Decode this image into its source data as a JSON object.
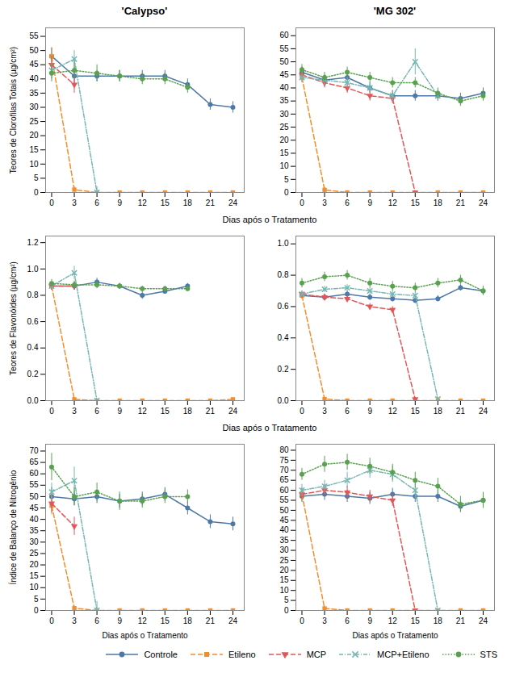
{
  "chart_data": [
    {
      "type": "line",
      "title": "'Calypso'",
      "ylabel": "Teores de Clorofilas Totais (µg/cm²)",
      "xlabel": "Dias após o Tratamento",
      "x": [
        0,
        3,
        6,
        9,
        12,
        15,
        18,
        21,
        24
      ],
      "xlim": [
        -0.8,
        25.5
      ],
      "xticks": [
        0,
        3,
        6,
        9,
        12,
        15,
        18,
        21,
        24
      ],
      "ylim": [
        0,
        58
      ],
      "yticks": [
        0,
        5,
        10,
        15,
        20,
        25,
        30,
        35,
        40,
        45,
        50,
        55
      ],
      "series": [
        {
          "name": "Controle",
          "marker": "circle",
          "line_style": "solid",
          "values": [
            48,
            41,
            41,
            41,
            41,
            41,
            38,
            31,
            30
          ],
          "errors": [
            3,
            3,
            2,
            2,
            2,
            2,
            2,
            2,
            2
          ]
        },
        {
          "name": "Etileno",
          "marker": "square",
          "line_style": "dashed",
          "values": [
            48,
            1,
            0,
            0,
            0,
            0,
            0,
            0,
            0
          ],
          "errors": [
            3,
            1,
            0,
            0,
            0,
            0,
            0,
            0,
            0
          ]
        },
        {
          "name": "MCP",
          "marker": "triangle_down",
          "line_style": "dashed",
          "values": [
            45,
            38,
            null,
            null,
            null,
            null,
            null,
            null,
            null
          ],
          "errors": [
            3,
            3,
            null,
            null,
            null,
            null,
            null,
            null,
            null
          ]
        },
        {
          "name": "MCP+Etileno",
          "marker": "x",
          "line_style": "dashdot",
          "values": [
            43,
            47,
            0,
            null,
            null,
            null,
            null,
            null,
            null
          ],
          "errors": [
            3,
            3,
            2,
            null,
            null,
            null,
            null,
            null,
            null
          ]
        },
        {
          "name": "STS",
          "marker": "circle",
          "line_style": "dotted",
          "values": [
            42,
            43,
            42,
            41,
            40,
            40,
            37,
            null,
            null
          ],
          "errors": [
            3,
            3,
            3,
            2,
            2,
            2,
            2,
            null,
            null
          ]
        }
      ]
    },
    {
      "type": "line",
      "title": "'MG 302'",
      "x": [
        0,
        3,
        6,
        9,
        12,
        15,
        18,
        21,
        24
      ],
      "xlim": [
        -0.8,
        25.5
      ],
      "xticks": [
        0,
        3,
        6,
        9,
        12,
        15,
        18,
        21,
        24
      ],
      "ylim": [
        0,
        63
      ],
      "yticks": [
        0,
        5,
        10,
        15,
        20,
        25,
        30,
        35,
        40,
        45,
        50,
        55,
        60
      ],
      "series": [
        {
          "name": "Controle",
          "marker": "circle",
          "line_style": "solid",
          "values": [
            46,
            43,
            44,
            40,
            37,
            37,
            37,
            36,
            38
          ],
          "errors": [
            2,
            2,
            2,
            2,
            2,
            2,
            2,
            2,
            2
          ]
        },
        {
          "name": "Etileno",
          "marker": "square",
          "line_style": "dashed",
          "values": [
            44,
            1,
            0,
            0,
            0,
            0,
            0,
            0,
            0
          ],
          "errors": [
            2,
            1,
            0,
            0,
            0,
            0,
            0,
            0,
            0
          ]
        },
        {
          "name": "MCP",
          "marker": "triangle_down",
          "line_style": "dashed",
          "values": [
            45,
            42,
            40,
            37,
            36,
            0,
            null,
            null,
            null
          ],
          "errors": [
            2,
            2,
            2,
            2,
            2,
            0,
            null,
            null,
            null
          ]
        },
        {
          "name": "MCP+Etileno",
          "marker": "x",
          "line_style": "dashdot",
          "values": [
            44,
            43,
            42,
            40,
            37,
            50,
            37,
            null,
            null
          ],
          "errors": [
            2,
            2,
            2,
            2,
            2,
            5,
            2,
            null,
            null
          ]
        },
        {
          "name": "STS",
          "marker": "circle",
          "line_style": "dotted",
          "values": [
            47,
            44,
            46,
            44,
            42,
            42,
            38,
            35,
            37
          ],
          "errors": [
            2,
            2,
            2,
            2,
            2,
            2,
            2,
            2,
            2
          ]
        }
      ]
    },
    {
      "type": "line",
      "ylabel": "Teores de Flavonóides (µg/cm²)",
      "xlabel": "Dias após o Tratamento",
      "x": [
        0,
        3,
        6,
        9,
        12,
        15,
        18,
        21,
        24
      ],
      "xlim": [
        -0.8,
        25.5
      ],
      "xticks": [
        0,
        3,
        6,
        9,
        12,
        15,
        18,
        21,
        24
      ],
      "ylim": [
        0.0,
        1.25
      ],
      "yticks": [
        {
          "value": 0,
          "label": "0.0"
        },
        0.2,
        0.4,
        0.6,
        0.8,
        {
          "value": 1,
          "label": "1.0"
        },
        1.2
      ],
      "series": [
        {
          "name": "Controle",
          "marker": "circle",
          "line_style": "solid",
          "values": [
            0.87,
            0.87,
            0.9,
            0.87,
            0.8,
            0.83,
            0.87,
            null,
            null
          ],
          "errors": [
            0.03,
            0.03,
            0.03,
            0.02,
            0.03,
            0.02,
            0.02,
            null,
            null
          ]
        },
        {
          "name": "Etileno",
          "marker": "square",
          "line_style": "dashed",
          "values": [
            0.87,
            0.01,
            0.0,
            0.0,
            0.0,
            0.0,
            0.0,
            0.0,
            0.01
          ],
          "errors": [
            0.03,
            0.01,
            0.0,
            0.0,
            0.0,
            0.0,
            0.0,
            0.0,
            0.01
          ]
        },
        {
          "name": "MCP",
          "marker": "triangle_down",
          "line_style": "dashed",
          "values": [
            0.87,
            0.87,
            null,
            null,
            null,
            null,
            null,
            null,
            null
          ],
          "errors": [
            0.03,
            0.03,
            null,
            null,
            null,
            null,
            null,
            null,
            null
          ]
        },
        {
          "name": "MCP+Etileno",
          "marker": "x",
          "line_style": "dashdot",
          "values": [
            0.87,
            0.97,
            0.0,
            null,
            null,
            null,
            null,
            null,
            null
          ],
          "errors": [
            0.03,
            0.05,
            0.0,
            null,
            null,
            null,
            null,
            null,
            null
          ]
        },
        {
          "name": "STS",
          "marker": "circle",
          "line_style": "dotted",
          "values": [
            0.89,
            0.88,
            0.88,
            0.87,
            0.85,
            0.85,
            0.85,
            null,
            null
          ],
          "errors": [
            0.03,
            0.03,
            0.03,
            0.02,
            0.02,
            0.02,
            0.02,
            null,
            null
          ]
        }
      ]
    },
    {
      "type": "line",
      "x": [
        0,
        3,
        6,
        9,
        12,
        15,
        18,
        21,
        24
      ],
      "xlim": [
        -0.8,
        25.5
      ],
      "xticks": [
        0,
        3,
        6,
        9,
        12,
        15,
        18,
        21,
        24
      ],
      "ylim": [
        0.0,
        1.05
      ],
      "yticks": [
        {
          "value": 0,
          "label": "0.0"
        },
        0.2,
        0.4,
        0.6,
        0.8,
        {
          "value": 1,
          "label": "1.0"
        }
      ],
      "series": [
        {
          "name": "Controle",
          "marker": "circle",
          "line_style": "solid",
          "values": [
            0.67,
            0.66,
            0.68,
            0.66,
            0.65,
            0.64,
            0.65,
            0.72,
            0.7
          ],
          "errors": [
            0.02,
            0.02,
            0.02,
            0.02,
            0.02,
            0.02,
            0.02,
            0.02,
            0.02
          ]
        },
        {
          "name": "Etileno",
          "marker": "square",
          "line_style": "dashed",
          "values": [
            0.67,
            0.01,
            0.0,
            0.0,
            0.0,
            0.0,
            0.0,
            0.0,
            0.0
          ],
          "errors": [
            0.02,
            0.01,
            0.0,
            0.0,
            0.0,
            0.0,
            0.0,
            0.0,
            0.0
          ]
        },
        {
          "name": "MCP",
          "marker": "triangle_down",
          "line_style": "dashed",
          "values": [
            0.68,
            0.66,
            0.65,
            0.6,
            0.58,
            0.01,
            null,
            null,
            null
          ],
          "errors": [
            0.02,
            0.02,
            0.02,
            0.02,
            0.02,
            0.01,
            null,
            null,
            null
          ]
        },
        {
          "name": "MCP+Etileno",
          "marker": "x",
          "line_style": "dashdot",
          "values": [
            0.68,
            0.71,
            0.72,
            0.7,
            0.68,
            0.67,
            0.01,
            null,
            null
          ],
          "errors": [
            0.02,
            0.02,
            0.02,
            0.02,
            0.02,
            0.02,
            0.01,
            null,
            null
          ]
        },
        {
          "name": "STS",
          "marker": "circle",
          "line_style": "dotted",
          "values": [
            0.75,
            0.79,
            0.8,
            0.75,
            0.73,
            0.72,
            0.75,
            0.77,
            0.7
          ],
          "errors": [
            0.03,
            0.03,
            0.03,
            0.03,
            0.03,
            0.03,
            0.03,
            0.03,
            0.03
          ]
        }
      ]
    },
    {
      "type": "line",
      "ylabel": "Índice de Balanço de Nitrogênio",
      "xlabel": "Dias após o Tratamento",
      "x": [
        0,
        3,
        6,
        9,
        12,
        15,
        18,
        21,
        24
      ],
      "xlim": [
        -0.8,
        25.5
      ],
      "xticks": [
        0,
        3,
        6,
        9,
        12,
        15,
        18,
        21,
        24
      ],
      "ylim": [
        0,
        73
      ],
      "yticks": [
        0,
        5,
        10,
        15,
        20,
        25,
        30,
        35,
        40,
        45,
        50,
        55,
        60,
        65,
        70
      ],
      "series": [
        {
          "name": "Controle",
          "marker": "circle",
          "line_style": "solid",
          "values": [
            50,
            49,
            50,
            48,
            49,
            51,
            45,
            39,
            38
          ],
          "errors": [
            4,
            3,
            3,
            3,
            3,
            3,
            3,
            3,
            3
          ]
        },
        {
          "name": "Etileno",
          "marker": "square",
          "line_style": "dashed",
          "values": [
            46,
            1,
            0,
            0,
            0,
            0,
            0,
            0,
            0
          ],
          "errors": [
            4,
            1,
            0,
            0,
            0,
            0,
            0,
            0,
            0
          ]
        },
        {
          "name": "MCP",
          "marker": "triangle_down",
          "line_style": "dashed",
          "values": [
            47,
            37,
            null,
            null,
            null,
            null,
            null,
            null,
            null
          ],
          "errors": [
            4,
            4,
            null,
            null,
            null,
            null,
            null,
            null,
            null
          ]
        },
        {
          "name": "MCP+Etileno",
          "marker": "x",
          "line_style": "dashdot",
          "values": [
            52,
            57,
            0,
            null,
            null,
            null,
            null,
            null,
            null
          ],
          "errors": [
            4,
            6,
            4,
            null,
            null,
            null,
            null,
            null,
            null
          ]
        },
        {
          "name": "STS",
          "marker": "circle",
          "line_style": "dotted",
          "values": [
            63,
            50,
            52,
            48,
            48,
            50,
            50,
            null,
            null
          ],
          "errors": [
            6,
            4,
            4,
            4,
            3,
            3,
            3,
            null,
            null
          ]
        }
      ]
    },
    {
      "type": "line",
      "xlabel": "Dias após o Tratamento",
      "legend": "lower right",
      "x": [
        0,
        3,
        6,
        9,
        12,
        15,
        18,
        21,
        24
      ],
      "xlim": [
        -0.8,
        25.5
      ],
      "xticks": [
        0,
        3,
        6,
        9,
        12,
        15,
        18,
        21,
        24
      ],
      "ylim": [
        0,
        83
      ],
      "yticks": [
        0,
        5,
        10,
        15,
        20,
        25,
        30,
        35,
        40,
        45,
        50,
        55,
        60,
        65,
        70,
        75,
        80
      ],
      "series": [
        {
          "name": "Controle",
          "marker": "circle",
          "line_style": "solid",
          "values": [
            57,
            58,
            57,
            56,
            58,
            57,
            57,
            52,
            55
          ],
          "errors": [
            3,
            3,
            3,
            3,
            3,
            3,
            3,
            3,
            3
          ]
        },
        {
          "name": "Etileno",
          "marker": "square",
          "line_style": "dashed",
          "values": [
            58,
            1,
            0,
            0,
            0,
            0,
            0,
            0,
            0
          ],
          "errors": [
            3,
            1,
            0,
            0,
            0,
            0,
            0,
            0,
            0
          ]
        },
        {
          "name": "MCP",
          "marker": "triangle_down",
          "line_style": "dashed",
          "values": [
            58,
            60,
            59,
            57,
            55,
            0,
            null,
            null,
            null
          ],
          "errors": [
            3,
            3,
            3,
            3,
            3,
            0,
            null,
            null,
            null
          ]
        },
        {
          "name": "MCP+Etileno",
          "marker": "x",
          "line_style": "dashdot",
          "values": [
            60,
            62,
            65,
            70,
            68,
            60,
            0,
            null,
            null
          ],
          "errors": [
            3,
            3,
            4,
            4,
            4,
            4,
            0,
            null,
            null
          ]
        },
        {
          "name": "STS",
          "marker": "circle",
          "line_style": "dotted",
          "values": [
            68,
            73,
            74,
            72,
            69,
            65,
            62,
            53,
            55
          ],
          "errors": [
            3,
            4,
            4,
            4,
            4,
            4,
            4,
            4,
            4
          ]
        }
      ]
    }
  ]
}
